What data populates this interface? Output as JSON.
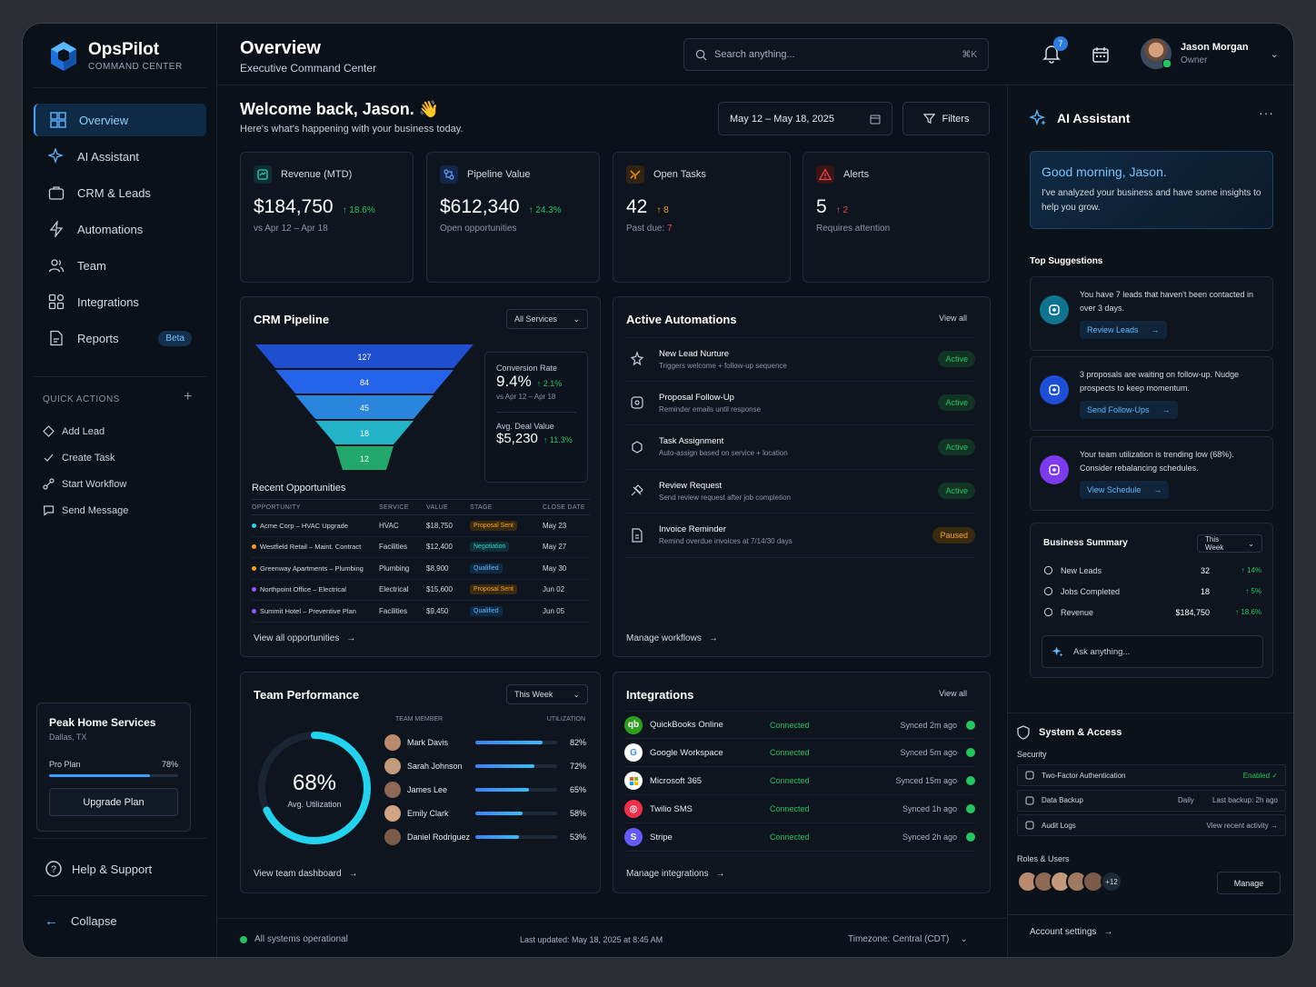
{
  "brand": {
    "name": "OpsPilot",
    "sub": "COMMAND CENTER"
  },
  "nav": [
    {
      "label": "Overview",
      "icon": "grid-icon"
    },
    {
      "label": "AI Assistant",
      "icon": "sparkle-icon"
    },
    {
      "label": "CRM & Leads",
      "icon": "briefcase-icon"
    },
    {
      "label": "Automations",
      "icon": "bolt-icon"
    },
    {
      "label": "Team",
      "icon": "users-icon"
    },
    {
      "label": "Integrations",
      "icon": "puzzle-icon"
    },
    {
      "label": "Reports",
      "icon": "report-icon",
      "badge": "Beta"
    }
  ],
  "quick_actions": {
    "title": "QUICK ACTIONS",
    "items": [
      "Add Lead",
      "Create Task",
      "Start Workflow",
      "Send Message"
    ]
  },
  "plan": {
    "company": "Peak Home Services",
    "location": "Dallas, TX",
    "plan": "Pro Plan",
    "usage": "78%",
    "usage_fraction": 0.78,
    "button": "Upgrade Plan"
  },
  "help": "Help & Support",
  "collapse": "Collapse",
  "header": {
    "title": "Overview",
    "subtitle": "Executive Command Center",
    "search_placeholder": "Search anything...",
    "shortcut": "⌘K",
    "notifications": "7",
    "user_name": "Jason Morgan",
    "user_role": "Owner"
  },
  "welcome": {
    "title": "Welcome back, Jason. 👋",
    "subtitle": "Here's what's happening with your business today.",
    "date_range": "May 12 – May 18, 2025",
    "filters": "Filters"
  },
  "kpis": [
    {
      "label": "Revenue (MTD)",
      "value": "$184,750",
      "delta": "↑ 18.6%",
      "sub": "vs Apr 12 – Apr 18",
      "color": "#2dd4bf"
    },
    {
      "label": "Pipeline Value",
      "value": "$612,340",
      "delta": "↑ 24.3%",
      "sub": "Open opportunities",
      "color": "#3b82f6"
    },
    {
      "label": "Open Tasks",
      "value": "42",
      "delta": "↑ 8",
      "sub_prefix": "Past due: ",
      "sub_value": "7",
      "color": "#f59e0b"
    },
    {
      "label": "Alerts",
      "value": "5",
      "delta": "↑ 2",
      "sub": "Requires attention",
      "color": "#ef4444"
    }
  ],
  "crm": {
    "title": "CRM Pipeline",
    "filter": "All Services",
    "funnel": [
      "127",
      "84",
      "45",
      "18",
      "12"
    ],
    "conversion": {
      "label": "Conversion Rate",
      "value": "9.4%",
      "delta": "↑ 2.1%",
      "sub": "vs Apr 12 – Apr 18"
    },
    "deal": {
      "label": "Avg. Deal Value",
      "value": "$5,230",
      "delta": "↑ 11.3%"
    },
    "recent_title": "Recent Opportunities",
    "columns": [
      "OPPORTUNITY",
      "SERVICE",
      "VALUE",
      "STAGE",
      "CLOSE DATE"
    ],
    "rows": [
      [
        "Acme Corp – HVAC Upgrade",
        "HVAC",
        "$18,750",
        "Proposal Sent",
        "May 23"
      ],
      [
        "Westfield Retail – Maint. Contract",
        "Facilities",
        "$12,400",
        "Negotiation",
        "May 27"
      ],
      [
        "Greenway Apartments – Plumbing",
        "Plumbing",
        "$8,900",
        "Qualified",
        "May 30"
      ],
      [
        "Northpoint Office – Electrical",
        "Electrical",
        "$15,600",
        "Proposal Sent",
        "Jun 02"
      ],
      [
        "Summit Hotel – Preventive Plan",
        "Facilities",
        "$9,450",
        "Qualified",
        "Jun 05"
      ]
    ],
    "row_colors": [
      "#22d3ee",
      "#f59e0b",
      "#f59e0b",
      "#8b5cf6",
      "#8b5cf6"
    ],
    "view_all": "View all opportunities"
  },
  "automations": {
    "title": "Active Automations",
    "view_all": "View all",
    "items": [
      {
        "title": "New Lead Nurture",
        "sub": "Triggers welcome + follow-up sequence",
        "status": "Active"
      },
      {
        "title": "Proposal Follow-Up",
        "sub": "Reminder emails until response",
        "status": "Active"
      },
      {
        "title": "Task Assignment",
        "sub": "Auto-assign based on service + location",
        "status": "Active"
      },
      {
        "title": "Review Request",
        "sub": "Send review request after job completion",
        "status": "Active"
      },
      {
        "title": "Invoice Reminder",
        "sub": "Remind overdue invoices at 7/14/30 days",
        "status": "Paused"
      }
    ],
    "manage": "Manage workflows"
  },
  "team": {
    "title": "Team Performance",
    "filter": "This Week",
    "value": "68%",
    "label": "Avg. Utilization",
    "fraction": 0.68,
    "col1": "TEAM MEMBER",
    "col2": "UTILIZATION",
    "members": [
      {
        "name": "Mark Davis",
        "util": "82%",
        "v": 0.82
      },
      {
        "name": "Sarah Johnson",
        "util": "72%",
        "v": 0.72
      },
      {
        "name": "James Lee",
        "util": "65%",
        "v": 0.65
      },
      {
        "name": "Emily Clark",
        "util": "58%",
        "v": 0.58
      },
      {
        "name": "Daniel Rodriguez",
        "util": "53%",
        "v": 0.53
      }
    ],
    "link": "View team dashboard"
  },
  "integrations": {
    "title": "Integrations",
    "view_all": "View all",
    "items": [
      {
        "name": "QuickBooks Online",
        "status": "Connected",
        "sync": "Synced 2m ago",
        "logo": "qb"
      },
      {
        "name": "Google Workspace",
        "status": "Connected",
        "sync": "Synced 5m ago",
        "logo": "G"
      },
      {
        "name": "Microsoft 365",
        "status": "Connected",
        "sync": "Synced 15m ago",
        "logo": "ms"
      },
      {
        "name": "Twilio SMS",
        "status": "Connected",
        "sync": "Synced 1h ago",
        "logo": "tw"
      },
      {
        "name": "Stripe",
        "status": "Connected",
        "sync": "Synced 2h ago",
        "logo": "S"
      }
    ],
    "manage": "Manage integrations"
  },
  "footer": {
    "status": "All systems operational",
    "updated": "Last updated: May 18, 2025 at 8:45 AM",
    "timezone": "Timezone: Central (CDT)"
  },
  "assistant": {
    "title": "AI Assistant",
    "greeting": "Good morning, Jason.",
    "intro": "I've analyzed your business and have some insights to help you grow.",
    "sug_title": "Top Suggestions",
    "suggestions": [
      {
        "text": "You have 7 leads that haven't been contacted in over 3 days.",
        "action": "Review Leads",
        "color": "#0e7490"
      },
      {
        "text": "3 proposals are waiting on follow-up. Nudge prospects to keep momentum.",
        "action": "Send Follow-Ups",
        "color": "#1d4ed8"
      },
      {
        "text": "Your team utilization is trending low (68%). Consider rebalancing schedules.",
        "action": "View Schedule",
        "color": "#7c3aed"
      }
    ],
    "summary": {
      "title": "Business Summary",
      "filter": "This Week",
      "rows": [
        {
          "label": "New Leads",
          "value": "32",
          "delta": "↑ 14%"
        },
        {
          "label": "Jobs Completed",
          "value": "18",
          "delta": "↑ 5%"
        },
        {
          "label": "Revenue",
          "value": "$184,750",
          "delta": "↑ 18.6%"
        }
      ]
    },
    "ask": "Ask anything..."
  },
  "system": {
    "title": "System & Access",
    "security": "Security",
    "rows": [
      {
        "label": "Two-Factor Authentication",
        "mid": "",
        "right": "Enabled ✓"
      },
      {
        "label": "Data Backup",
        "mid": "Daily",
        "right": "Last backup: 2h ago"
      },
      {
        "label": "Audit Logs",
        "mid": "",
        "right": "View recent activity →"
      }
    ],
    "roles": "Roles & Users",
    "more": "+12",
    "manage": "Manage",
    "account": "Account settings"
  }
}
